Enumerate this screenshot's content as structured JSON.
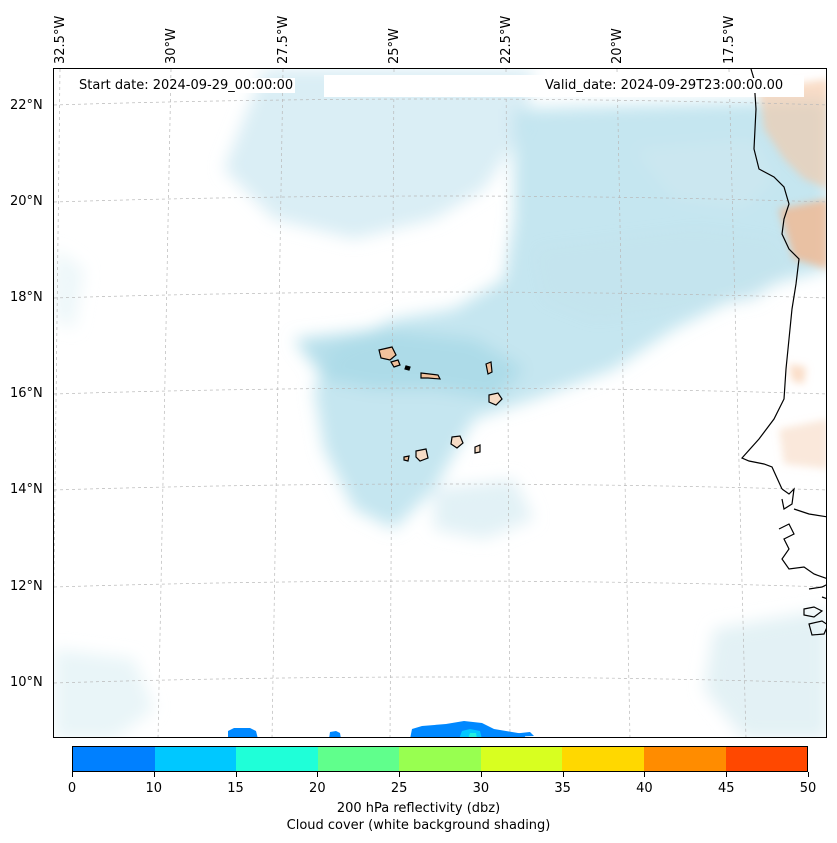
{
  "header": {
    "start_date": "Start date: 2024-09-29_00:00:00",
    "valid_date": "Valid_date: 2024-09-29T23:00:00.00"
  },
  "lon_labels": [
    "32.5°W",
    "30°W",
    "27.5°W",
    "25°W",
    "22.5°W",
    "20°W",
    "17.5°W"
  ],
  "lat_labels": [
    "22°N",
    "20°N",
    "18°N",
    "16°N",
    "14°N",
    "12°N",
    "10°N"
  ],
  "colorbar": {
    "ticks": [
      "0",
      "10",
      "15",
      "20",
      "25",
      "30",
      "35",
      "40",
      "45",
      "50"
    ],
    "colors": [
      "#0080ff",
      "#00c8ff",
      "#1fffd8",
      "#60ff8c",
      "#98ff50",
      "#d8ff20",
      "#ffd800",
      "#ff8c00",
      "#ff4800"
    ],
    "caption_line1": "200 hPa reflectivity (dbz)",
    "caption_line2": "Cloud cover (white background shading)"
  }
}
